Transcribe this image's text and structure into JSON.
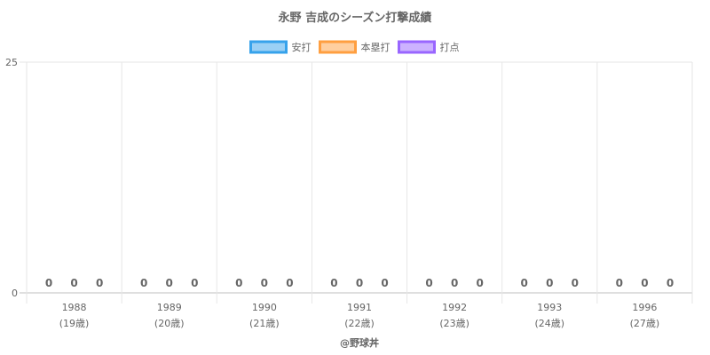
{
  "chart_data": {
    "type": "bar",
    "title": "永野 吉成のシーズン打撃成績",
    "categories": [
      [
        "1988",
        "(19歳)"
      ],
      [
        "1989",
        "(20歳)"
      ],
      [
        "1990",
        "(21歳)"
      ],
      [
        "1991",
        "(22歳)"
      ],
      [
        "1992",
        "(23歳)"
      ],
      [
        "1993",
        "(24歳)"
      ],
      [
        "1996",
        "(27歳)"
      ]
    ],
    "series": [
      {
        "name": "安打",
        "values": [
          0,
          0,
          0,
          0,
          0,
          0,
          0
        ],
        "color": "#36a2eb",
        "fill": "#9ad0f5"
      },
      {
        "name": "本塁打",
        "values": [
          0,
          0,
          0,
          0,
          0,
          0,
          0
        ],
        "color": "#ff9f40",
        "fill": "#ffcf9f"
      },
      {
        "name": "打点",
        "values": [
          0,
          0,
          0,
          0,
          0,
          0,
          0
        ],
        "color": "#9966ff",
        "fill": "#ccb2ff"
      }
    ],
    "ylim": [
      0,
      25
    ],
    "yticks": [
      "0",
      "25"
    ],
    "xlabel": "@野球丼",
    "ylabel": "",
    "grid": true,
    "legend": "top-center"
  }
}
